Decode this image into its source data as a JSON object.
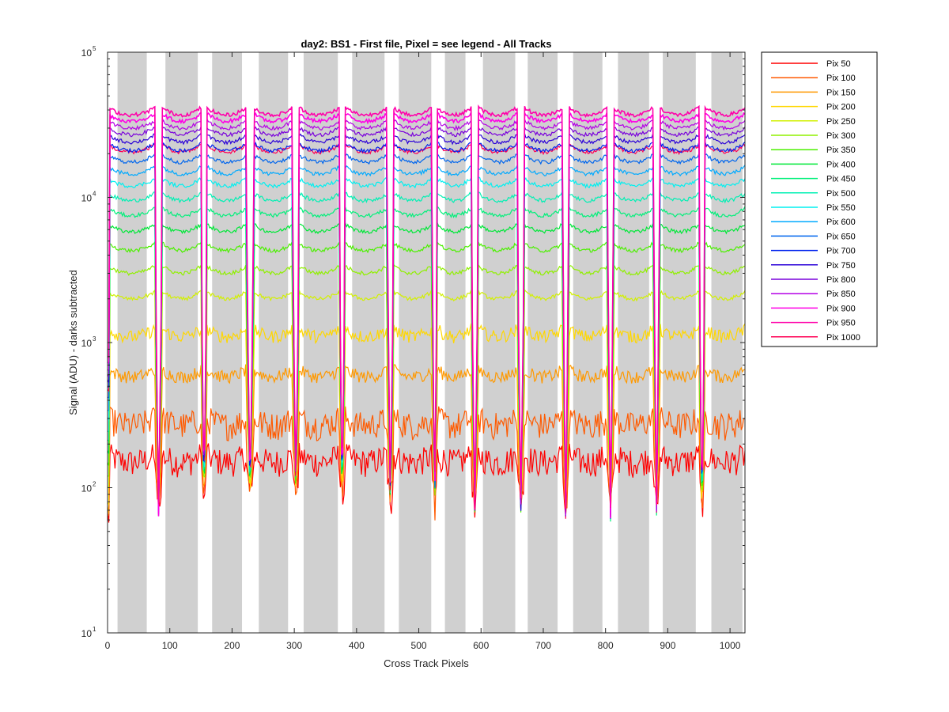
{
  "chart_data": {
    "type": "line",
    "title": "day2: BS1 - First file, Pixel = see legend - All Tracks",
    "xlabel": "Cross Track Pixels",
    "ylabel": "Signal (ADU) - darks subtracted",
    "xlim": [
      0,
      1024
    ],
    "ylim": [
      10,
      100000
    ],
    "yscale": "log",
    "x_ticks": [
      0,
      100,
      200,
      300,
      400,
      500,
      600,
      700,
      800,
      900,
      1000
    ],
    "y_ticks": [
      {
        "value": 10,
        "base": "10",
        "exp": "1"
      },
      {
        "value": 100,
        "base": "10",
        "exp": "2"
      },
      {
        "value": 1000,
        "base": "10",
        "exp": "3"
      },
      {
        "value": 10000,
        "base": "10",
        "exp": "4"
      },
      {
        "value": 100000,
        "base": "10",
        "exp": "5"
      }
    ],
    "grid": false,
    "legend_position": "outside-right",
    "shaded_band_color": "#d0d0d0",
    "shaded_bands": [
      [
        16,
        63
      ],
      [
        93,
        145
      ],
      [
        168,
        216
      ],
      [
        243,
        290
      ],
      [
        315,
        370
      ],
      [
        393,
        445
      ],
      [
        468,
        520
      ],
      [
        542,
        575
      ],
      [
        603,
        655
      ],
      [
        675,
        723
      ],
      [
        748,
        795
      ],
      [
        820,
        870
      ],
      [
        892,
        945
      ],
      [
        970,
        1020
      ]
    ],
    "dips": [
      [
        76,
        88
      ],
      [
        150,
        160
      ],
      [
        223,
        235
      ],
      [
        297,
        308
      ],
      [
        372,
        382
      ],
      [
        449,
        460
      ],
      [
        521,
        530
      ],
      [
        584,
        596
      ],
      [
        658,
        670
      ],
      [
        731,
        741
      ],
      [
        803,
        813
      ],
      [
        877,
        887
      ],
      [
        950,
        960
      ]
    ],
    "dip_min": [
      {
        "x": 82,
        "value": 70
      },
      {
        "x": 155,
        "value": 80
      },
      {
        "x": 229,
        "value": 85
      },
      {
        "x": 302,
        "value": 90
      },
      {
        "x": 377,
        "value": 80
      },
      {
        "x": 454,
        "value": 75
      },
      {
        "x": 525,
        "value": 75
      },
      {
        "x": 590,
        "value": 75
      },
      {
        "x": 664,
        "value": 75
      },
      {
        "x": 736,
        "value": 65
      },
      {
        "x": 808,
        "value": 65
      },
      {
        "x": 882,
        "value": 70
      },
      {
        "x": 955,
        "value": 65
      }
    ],
    "series": [
      {
        "name": "Pix 50",
        "color": "#ff0000",
        "level": 150
      },
      {
        "name": "Pix 100",
        "color": "#ff5a00",
        "level": 270
      },
      {
        "name": "Pix 150",
        "color": "#ff9900",
        "level": 580
      },
      {
        "name": "Pix 200",
        "color": "#ffd700",
        "level": 1100
      },
      {
        "name": "Pix 250",
        "color": "#d2f000",
        "level": 2000
      },
      {
        "name": "Pix 300",
        "color": "#90f000",
        "level": 3000
      },
      {
        "name": "Pix 350",
        "color": "#4cf000",
        "level": 4300
      },
      {
        "name": "Pix 400",
        "color": "#00e838",
        "level": 5800
      },
      {
        "name": "Pix 450",
        "color": "#00f07a",
        "level": 7500
      },
      {
        "name": "Pix 500",
        "color": "#00f0b4",
        "level": 9500
      },
      {
        "name": "Pix 550",
        "color": "#00f0f0",
        "level": 12000
      },
      {
        "name": "Pix 600",
        "color": "#00aaff",
        "level": 14500
      },
      {
        "name": "Pix 650",
        "color": "#0066ee",
        "level": 17500
      },
      {
        "name": "Pix 700",
        "color": "#0022ee",
        "level": 21000
      },
      {
        "name": "Pix 750",
        "color": "#2a00d8",
        "level": 24000
      },
      {
        "name": "Pix 800",
        "color": "#7a00dc",
        "level": 27000
      },
      {
        "name": "Pix 850",
        "color": "#b400e6",
        "level": 30000
      },
      {
        "name": "Pix 900",
        "color": "#ff00e6",
        "level": 33500
      },
      {
        "name": "Pix 950",
        "color": "#ff00aa",
        "level": 37000
      },
      {
        "name": "Pix 1000",
        "color": "#ff0055",
        "level": 20500
      }
    ]
  }
}
